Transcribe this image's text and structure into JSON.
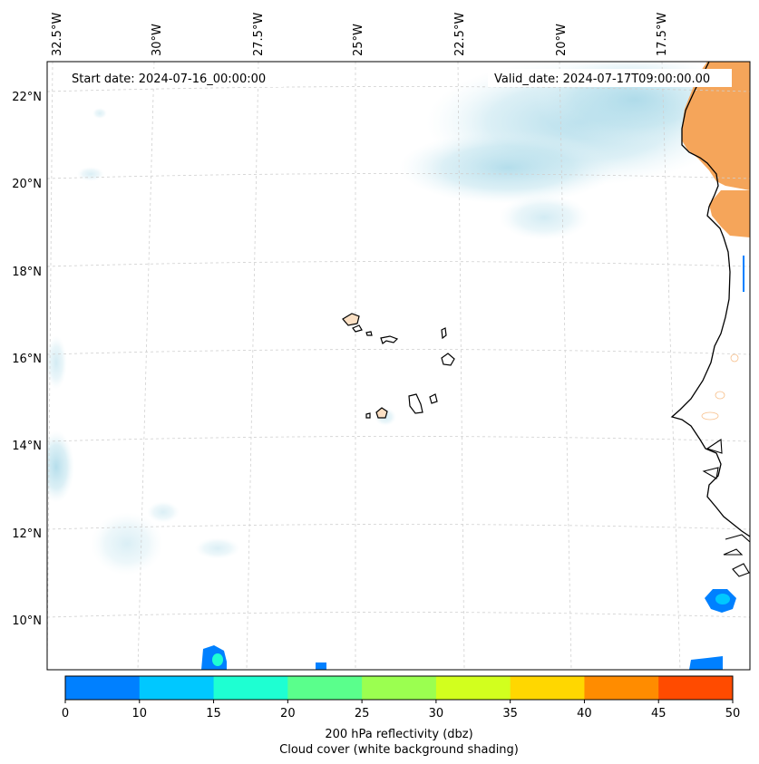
{
  "map": {
    "start_date_label": "Start date: 2024-07-16_00:00:00",
    "valid_date_label": "Valid_date: 2024-07-17T09:00:00.00",
    "lon_labels": [
      "32.5°W",
      "30°W",
      "27.5°W",
      "25°W",
      "22.5°W",
      "20°W",
      "17.5°W"
    ],
    "lat_labels": [
      "22°N",
      "20°N",
      "18°N",
      "16°N",
      "14°N",
      "12°N",
      "10°N"
    ],
    "features": [
      "cloud-cover-shading",
      "cape-verde-islands",
      "west-africa-coastline",
      "reflectivity-cells",
      "desert-land-shading"
    ]
  },
  "colorbar": {
    "tick_labels": [
      "0",
      "10",
      "15",
      "20",
      "25",
      "30",
      "35",
      "40",
      "45",
      "50"
    ],
    "colors": [
      "#0080ff",
      "#00c8ff",
      "#1effd2",
      "#5aff8c",
      "#9bff50",
      "#d2ff1e",
      "#ffd700",
      "#ff8c00",
      "#ff4b00"
    ],
    "label_line1": "200 hPa reflectivity (dbz)",
    "label_line2": "Cloud cover (white background shading)"
  },
  "colors": {
    "land_orange": "#f5a55a",
    "cloud_blue": "#a8d8e8",
    "coast": "#000000",
    "grid": "#d0d0d0"
  }
}
